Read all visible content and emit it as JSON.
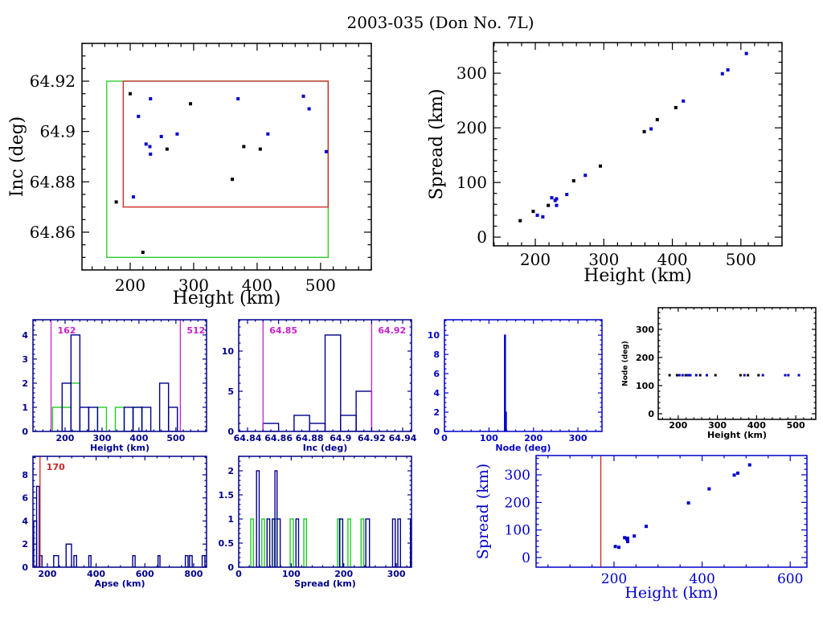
{
  "title": "2003-035 (Don No. 7L)",
  "chart_data": [
    {
      "id": "inc_vs_height",
      "type": "scatter",
      "xlabel": "Height (km)",
      "ylabel": "Inc (deg)",
      "xlim": [
        124,
        580
      ],
      "ylim": [
        64.845,
        64.935
      ],
      "xticks": [
        200,
        300,
        400,
        500
      ],
      "xtick_labels": [
        "200",
        "300",
        "400",
        "500"
      ],
      "xminor": 20,
      "yticks": [
        64.86,
        64.88,
        64.9,
        64.92
      ],
      "ytick_labels": [
        "64.86",
        "64.88",
        "64.9",
        "64.92"
      ],
      "yminor": 0.005,
      "boxes": [
        {
          "color": "#22cc22",
          "x": [
            163,
            512
          ],
          "y": [
            64.85,
            64.92
          ]
        },
        {
          "color": "#cc2222",
          "x": [
            189,
            512
          ],
          "y": [
            64.87,
            64.92
          ]
        }
      ],
      "series": [
        {
          "name": "black",
          "color": "#000000",
          "points": [
            [
              200,
              64.915
            ],
            [
              295,
              64.911
            ],
            [
              258,
              64.893
            ],
            [
              379,
              64.894
            ],
            [
              405,
              64.893
            ],
            [
              361,
              64.881
            ],
            [
              178,
              64.872
            ],
            [
              220,
              64.852
            ]
          ]
        },
        {
          "name": "blue",
          "color": "#0000cc",
          "points": [
            [
              232,
              64.913
            ],
            [
              213,
              64.906
            ],
            [
              370,
              64.913
            ],
            [
              473,
              64.914
            ],
            [
              482,
              64.909
            ],
            [
              249,
              64.898
            ],
            [
              274,
              64.899
            ],
            [
              225,
              64.895
            ],
            [
              231,
              64.894
            ],
            [
              232,
              64.891
            ],
            [
              417,
              64.899
            ],
            [
              509,
              64.892
            ],
            [
              205,
              64.874
            ]
          ]
        }
      ]
    },
    {
      "id": "spread_vs_height",
      "type": "scatter",
      "xlabel": "Height (km)",
      "ylabel": "Spread (km)",
      "xlim": [
        139,
        560
      ],
      "ylim": [
        -16,
        356
      ],
      "xticks": [
        200,
        300,
        400,
        500
      ],
      "xtick_labels": [
        "200",
        "300",
        "400",
        "500"
      ],
      "xminor": 20,
      "yticks": [
        0,
        100,
        200,
        300
      ],
      "ytick_labels": [
        "0",
        "100",
        "200",
        "300"
      ],
      "yminor": 20,
      "series": [
        {
          "name": "black",
          "color": "#000000",
          "points": [
            [
              178,
              30
            ],
            [
              197,
              47
            ],
            [
              219,
              58
            ],
            [
              256,
              103
            ],
            [
              295,
              130
            ],
            [
              359,
              193
            ],
            [
              378,
              215
            ],
            [
              405,
              237
            ]
          ]
        },
        {
          "name": "blue",
          "color": "#0000cc",
          "points": [
            [
              203,
              40
            ],
            [
              211,
              37
            ],
            [
              224,
              72
            ],
            [
              229,
              67
            ],
            [
              231,
              70
            ],
            [
              231,
              58
            ],
            [
              246,
              78
            ],
            [
              273,
              113
            ],
            [
              369,
              198
            ],
            [
              416,
              249
            ],
            [
              473,
              299
            ],
            [
              481,
              306
            ],
            [
              508,
              336
            ]
          ]
        }
      ]
    },
    {
      "id": "height_hist",
      "type": "bar",
      "xlabel": "Height (km)",
      "ylabel": "",
      "xlim": [
        113,
        583
      ],
      "ylim": [
        0,
        4.63
      ],
      "xticks": [
        200,
        300,
        400,
        500
      ],
      "xtick_labels": [
        "200",
        "300",
        "400",
        "500"
      ],
      "xminor": 20,
      "yticks": [
        0,
        1,
        2,
        3,
        4
      ],
      "ytick_labels": [
        "0",
        "1",
        "2",
        "3",
        "4"
      ],
      "yminor": 0.2,
      "hist": [
        {
          "name": "green",
          "color": "#22cc22",
          "bins": [
            [
              166,
              192,
              1
            ],
            [
              192,
              216,
              1
            ],
            [
              216,
              240,
              2
            ],
            [
              288,
              312,
              1
            ],
            [
              336,
              360,
              1
            ],
            [
              384,
              408,
              1
            ]
          ]
        },
        {
          "name": "blue",
          "color": "#00008b",
          "bins": [
            [
              192,
              216,
              2
            ],
            [
              216,
              240,
              4
            ],
            [
              240,
              264,
              1
            ],
            [
              264,
              288,
              1
            ],
            [
              360,
              384,
              1
            ],
            [
              384,
              408,
              1
            ],
            [
              408,
              432,
              1
            ],
            [
              456,
              480,
              2
            ],
            [
              480,
              504,
              1
            ]
          ]
        }
      ],
      "vlines": [
        {
          "value": 162,
          "label": "162",
          "color": "#cc22cc"
        },
        {
          "value": 512,
          "label": "512",
          "color": "#cc22cc"
        }
      ]
    },
    {
      "id": "inc_hist",
      "type": "bar",
      "xlabel": "Inc (deg)",
      "ylabel": "",
      "xlim": [
        64.8343,
        64.9457
      ],
      "ylim": [
        0,
        13.9
      ],
      "xticks": [
        64.84,
        64.86,
        64.88,
        64.9,
        64.92,
        64.94
      ],
      "xtick_labels": [
        "64.84",
        "64.86",
        "64.88",
        "64.9",
        "64.92",
        "64.94"
      ],
      "xminor": 0.005,
      "yticks": [
        0,
        5,
        10
      ],
      "ytick_labels": [
        "0",
        "5",
        "10"
      ],
      "yminor": 1,
      "hist": [
        {
          "name": "blue",
          "color": "#00008b",
          "bins": [
            [
              64.85,
              64.86,
              1
            ],
            [
              64.87,
              64.88,
              2
            ],
            [
              64.88,
              64.89,
              1
            ],
            [
              64.89,
              64.9,
              12
            ],
            [
              64.9,
              64.91,
              2
            ],
            [
              64.91,
              64.92,
              5
            ]
          ]
        }
      ],
      "vlines": [
        {
          "value": 64.85,
          "label": "64.85",
          "color": "#cc22cc"
        },
        {
          "value": 64.92,
          "label": "64.92",
          "color": "#cc22cc"
        }
      ]
    },
    {
      "id": "node_hist",
      "type": "bar",
      "xlabel": "Node (deg)",
      "ylabel": "",
      "xlim": [
        0,
        354
      ],
      "ylim": [
        0,
        11.6
      ],
      "xticks": [
        0,
        100,
        200,
        300
      ],
      "xtick_labels": [
        "0",
        "100",
        "200",
        "300"
      ],
      "xminor": 20,
      "yticks": [
        0,
        2,
        4,
        6,
        8,
        10
      ],
      "ytick_labels": [
        "0",
        "2",
        "4",
        "6",
        "8",
        "10"
      ],
      "yminor": 0.5,
      "hist": [
        {
          "name": "blue",
          "color": "#0000cc",
          "bins": [
            [
              135,
              137,
              10
            ],
            [
              137,
              139,
              2
            ]
          ]
        }
      ]
    },
    {
      "id": "node_vs_height",
      "type": "scatter",
      "xlabel": "Height (km)",
      "ylabel": "Node (deg)",
      "xlim": [
        149,
        551
      ],
      "ylim": [
        -20,
        377
      ],
      "xticks": [
        200,
        300,
        400,
        500
      ],
      "xtick_labels": [
        "200",
        "300",
        "400",
        "500"
      ],
      "xminor": 20,
      "yticks": [
        0,
        100,
        200,
        300
      ],
      "ytick_labels": [
        "0",
        "100",
        "200",
        "300"
      ],
      "yminor": 20,
      "series": [
        {
          "name": "black",
          "color": "#000000",
          "points": [
            [
              178,
              137
            ],
            [
              197,
              137
            ],
            [
              219,
              137
            ],
            [
              256,
              137
            ],
            [
              295,
              137
            ],
            [
              359,
              137
            ],
            [
              378,
              137
            ],
            [
              405,
              137
            ]
          ]
        },
        {
          "name": "blue",
          "color": "#0000cc",
          "points": [
            [
              203,
              137
            ],
            [
              211,
              137
            ],
            [
              224,
              137
            ],
            [
              229,
              137
            ],
            [
              231,
              137
            ],
            [
              246,
              137
            ],
            [
              273,
              137
            ],
            [
              369,
              137
            ],
            [
              416,
              137
            ],
            [
              473,
              137
            ],
            [
              481,
              137
            ],
            [
              508,
              137
            ]
          ]
        }
      ]
    },
    {
      "id": "apse_hist",
      "type": "bar",
      "xlabel": "Apse (km)",
      "ylabel": "",
      "xlim": [
        141,
        853
      ],
      "ylim": [
        0,
        9.6
      ],
      "xticks": [
        200,
        400,
        600,
        800
      ],
      "xtick_labels": [
        "200",
        "400",
        "600",
        "800"
      ],
      "xminor": 50,
      "yticks": [
        0,
        2,
        4,
        6,
        8
      ],
      "ytick_labels": [
        "0",
        "2",
        "4",
        "6",
        "8"
      ],
      "yminor": 0.5,
      "hist": [
        {
          "name": "blue",
          "color": "#00008b",
          "bins": [
            [
              144,
              156,
              4
            ],
            [
              156,
              167,
              7
            ],
            [
              167,
              178,
              1
            ],
            [
              226,
              246,
              1
            ],
            [
              277,
              299,
              2
            ],
            [
              309,
              320,
              1
            ],
            [
              370,
              379,
              1
            ],
            [
              550,
              560,
              1
            ],
            [
              654,
              662,
              1
            ],
            [
              766,
              777,
              1
            ],
            [
              783,
              794,
              1
            ],
            [
              835,
              846,
              1
            ]
          ]
        }
      ],
      "vlines": [
        {
          "value": 170,
          "label": "170",
          "color": "#cc2222"
        }
      ]
    },
    {
      "id": "spread_hist",
      "type": "bar",
      "xlabel": "Spread (km)",
      "ylabel": "",
      "xlim": [
        0,
        329
      ],
      "ylim": [
        0,
        2.3
      ],
      "xticks": [
        0,
        100,
        200,
        300
      ],
      "xtick_labels": [
        "0",
        "100",
        "200",
        "300"
      ],
      "xminor": 20,
      "yticks": [
        0,
        0.5,
        1,
        1.5,
        2
      ],
      "ytick_labels": [
        "0",
        "0.5",
        "1",
        "1.5",
        "2"
      ],
      "yminor": 0.1,
      "hist": [
        {
          "name": "green",
          "color": "#22cc22",
          "bins": [
            [
              23,
              28,
              1
            ],
            [
              44,
              49,
              1
            ],
            [
              68,
              73,
              1
            ],
            [
              98,
              104,
              1
            ],
            [
              124,
              129,
              1
            ],
            [
              188,
              193,
              1
            ],
            [
              208,
              213,
              1
            ],
            [
              233,
              238,
              1
            ]
          ]
        },
        {
          "name": "blue",
          "color": "#00008b",
          "bins": [
            [
              34,
              39,
              2
            ],
            [
              54,
              59,
              1
            ],
            [
              64,
              69,
              1
            ],
            [
              69,
              73,
              2
            ],
            [
              73,
              79,
              1
            ],
            [
              109,
              114,
              1
            ],
            [
              192,
              198,
              1
            ],
            [
              242,
              249,
              1
            ],
            [
              293,
              298,
              1
            ],
            [
              303,
              308,
              1
            ],
            [
              327,
              332,
              1
            ]
          ]
        }
      ]
    },
    {
      "id": "spread_vs_height_blue",
      "type": "scatter",
      "xlabel": "Height (km)",
      "ylabel": "Spread (km)",
      "xlim": [
        23,
        638
      ],
      "ylim": [
        -35,
        370
      ],
      "xticks": [
        200,
        400,
        600
      ],
      "xtick_labels": [
        "200",
        "400",
        "600"
      ],
      "xminor": 50,
      "yticks": [
        0,
        100,
        200,
        300
      ],
      "ytick_labels": [
        "0",
        "100",
        "200",
        "300"
      ],
      "yminor": 20,
      "series": [
        {
          "name": "blue",
          "color": "#0000cc",
          "points": [
            [
              203,
              40
            ],
            [
              211,
              37
            ],
            [
              224,
              72
            ],
            [
              229,
              67
            ],
            [
              231,
              70
            ],
            [
              231,
              58
            ],
            [
              246,
              78
            ],
            [
              273,
              113
            ],
            [
              369,
              198
            ],
            [
              416,
              249
            ],
            [
              473,
              299
            ],
            [
              481,
              306
            ],
            [
              508,
              336
            ]
          ]
        }
      ],
      "vlines": [
        {
          "value": 170,
          "label": "",
          "color": "#cc2222"
        }
      ]
    }
  ]
}
